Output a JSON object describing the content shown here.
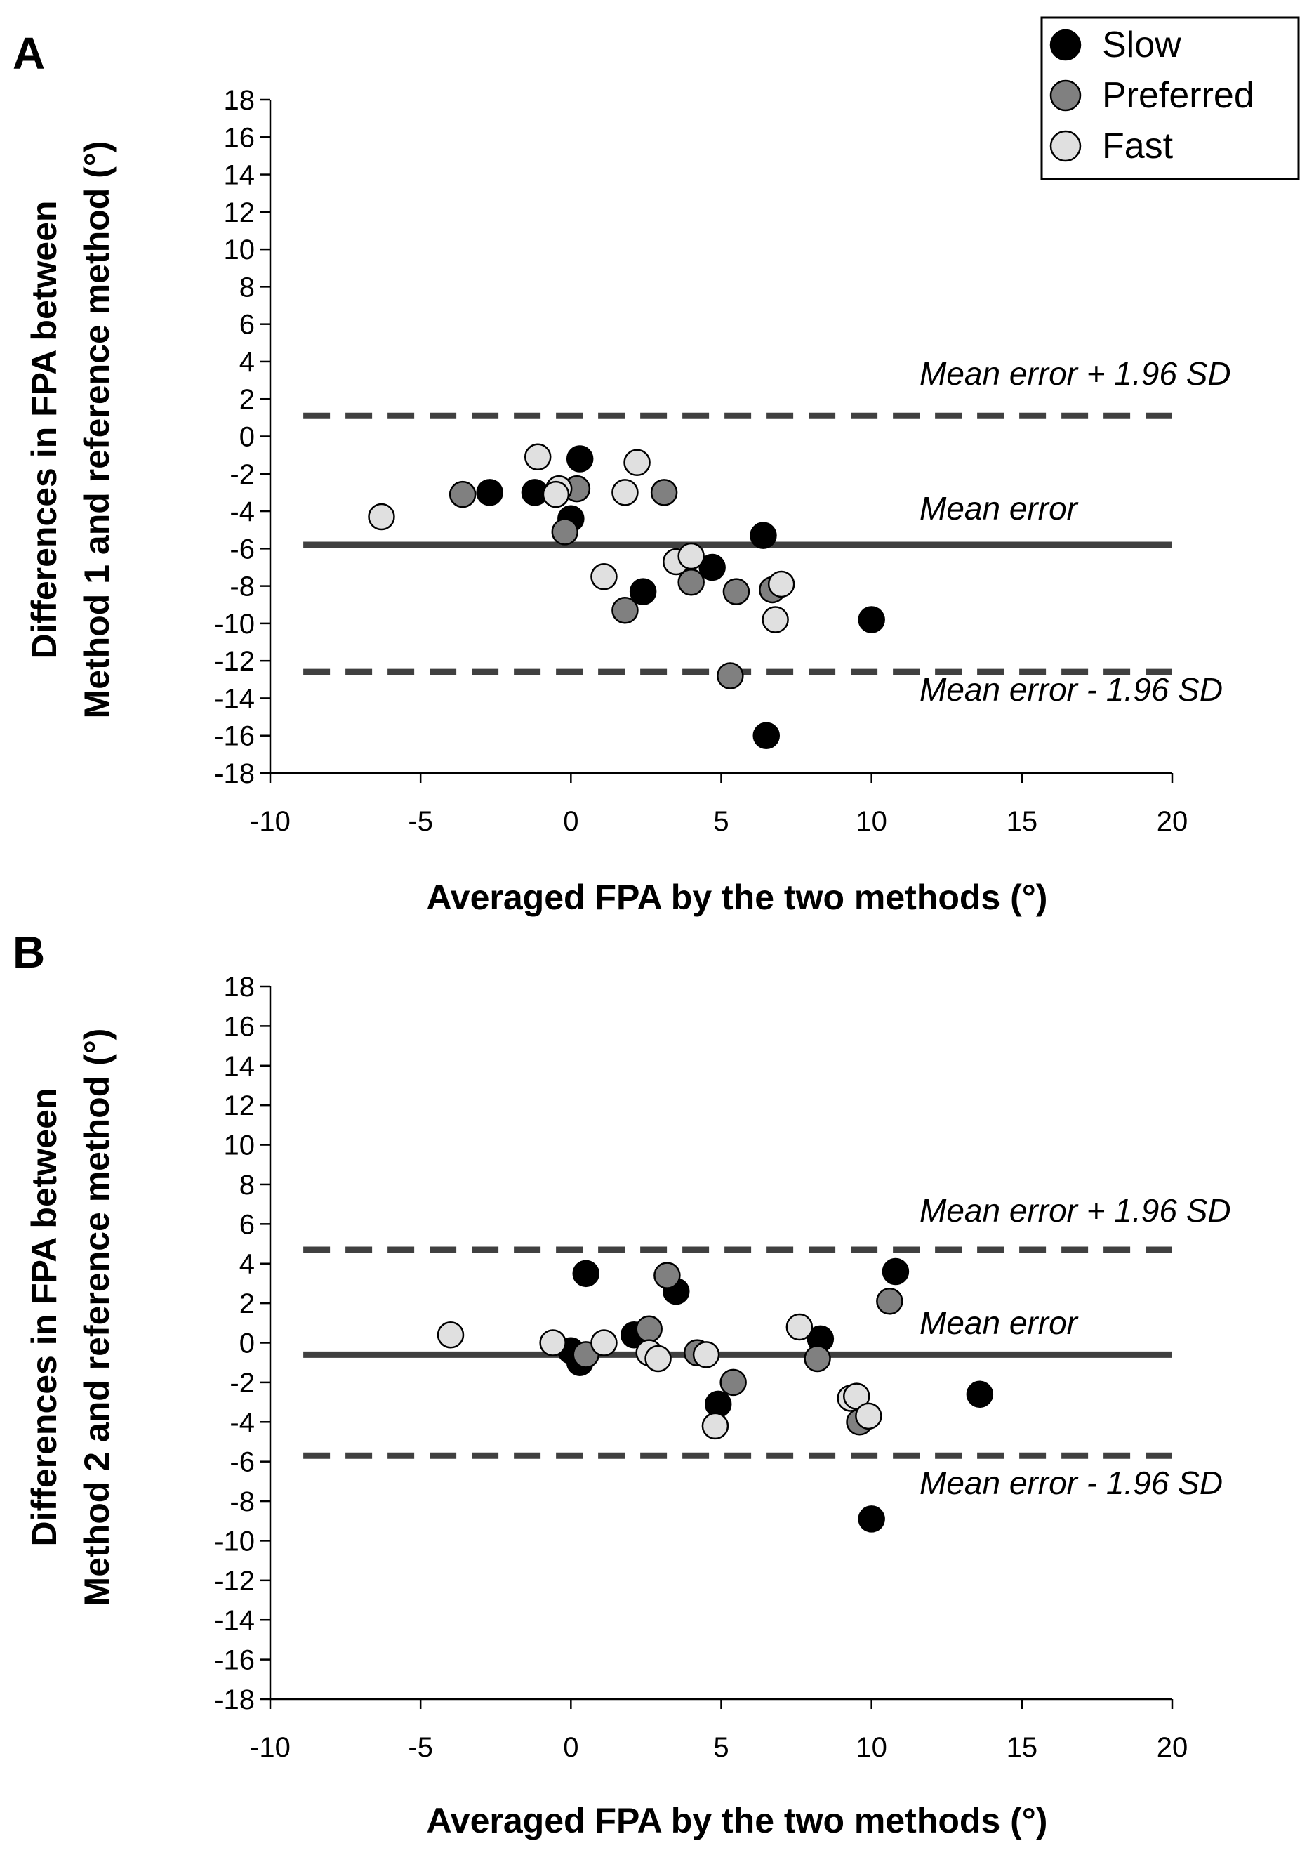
{
  "chart_data": [
    {
      "panel": "A",
      "type": "scatter",
      "xlabel": "Averaged FPA by the two methods (°)",
      "ylabel_lines": [
        "Differences in FPA between",
        "Method 1 and reference method (°)"
      ],
      "xlim": [
        -10,
        20
      ],
      "ylim": [
        -18,
        18
      ],
      "xticks": [
        -10,
        -5,
        0,
        5,
        10,
        15,
        20
      ],
      "yticks": [
        18,
        16,
        14,
        12,
        10,
        8,
        6,
        4,
        2,
        0,
        -2,
        -4,
        -6,
        -8,
        -10,
        -12,
        -14,
        -16,
        -18
      ],
      "lines": {
        "mean": -5.8,
        "upper": 1.1,
        "lower": -12.6,
        "x_start": -8.9
      },
      "annotations": {
        "upper": "Mean error + 1.96 SD",
        "mean": "Mean error",
        "lower": "Mean error - 1.96 SD"
      },
      "series": [
        {
          "name": "Slow",
          "color": "#000000",
          "points": [
            [
              0.3,
              -1.2
            ],
            [
              -2.7,
              -3.0
            ],
            [
              -1.2,
              -3.0
            ],
            [
              0.0,
              -4.4
            ],
            [
              6.4,
              -5.3
            ],
            [
              4.7,
              -7.0
            ],
            [
              2.4,
              -8.3
            ],
            [
              10.0,
              -9.8
            ],
            [
              6.5,
              -16.0
            ]
          ]
        },
        {
          "name": "Preferred",
          "color": "#808080",
          "points": [
            [
              -3.6,
              -3.1
            ],
            [
              0.2,
              -2.8
            ],
            [
              3.1,
              -3.0
            ],
            [
              -0.2,
              -5.1
            ],
            [
              4.0,
              -7.8
            ],
            [
              5.5,
              -8.3
            ],
            [
              6.7,
              -8.2
            ],
            [
              1.8,
              -9.3
            ],
            [
              5.3,
              -12.8
            ]
          ]
        },
        {
          "name": "Fast",
          "color": "#e0e0e0",
          "points": [
            [
              -6.3,
              -4.3
            ],
            [
              -1.1,
              -1.1
            ],
            [
              -0.4,
              -2.8
            ],
            [
              -0.5,
              -3.1
            ],
            [
              2.2,
              -1.4
            ],
            [
              1.8,
              -3.0
            ],
            [
              3.5,
              -6.7
            ],
            [
              4.0,
              -6.4
            ],
            [
              1.1,
              -7.5
            ],
            [
              7.0,
              -7.9
            ],
            [
              6.8,
              -9.8
            ]
          ]
        }
      ]
    },
    {
      "panel": "B",
      "type": "scatter",
      "xlabel": "Averaged FPA by the two methods (°)",
      "ylabel_lines": [
        "Differences in FPA between",
        "Method 2 and reference method (°)"
      ],
      "xlim": [
        -10,
        20
      ],
      "ylim": [
        -18,
        18
      ],
      "xticks": [
        -10,
        -5,
        0,
        5,
        10,
        15,
        20
      ],
      "yticks": [
        18,
        16,
        14,
        12,
        10,
        8,
        6,
        4,
        2,
        0,
        -2,
        -4,
        -6,
        -8,
        -10,
        -12,
        -14,
        -16,
        -18
      ],
      "lines": {
        "mean": -0.6,
        "upper": 4.7,
        "lower": -5.7,
        "x_start": -8.9
      },
      "annotations": {
        "upper": "Mean error + 1.96 SD",
        "mean": "Mean error",
        "lower": "Mean error - 1.96 SD"
      },
      "series": [
        {
          "name": "Slow",
          "color": "#000000",
          "points": [
            [
              0.5,
              3.5
            ],
            [
              3.5,
              2.6
            ],
            [
              2.1,
              0.4
            ],
            [
              0.0,
              -0.4
            ],
            [
              0.3,
              -1.0
            ],
            [
              8.3,
              0.2
            ],
            [
              4.9,
              -3.1
            ],
            [
              10.8,
              3.6
            ],
            [
              13.6,
              -2.6
            ],
            [
              10.0,
              -8.9
            ]
          ]
        },
        {
          "name": "Preferred",
          "color": "#808080",
          "points": [
            [
              3.2,
              3.4
            ],
            [
              2.6,
              0.7
            ],
            [
              0.5,
              -0.6
            ],
            [
              4.2,
              -0.5
            ],
            [
              5.4,
              -2.0
            ],
            [
              8.2,
              -0.8
            ],
            [
              9.6,
              -4.0
            ],
            [
              10.6,
              2.1
            ]
          ]
        },
        {
          "name": "Fast",
          "color": "#e0e0e0",
          "points": [
            [
              -4.0,
              0.4
            ],
            [
              -0.6,
              0.0
            ],
            [
              1.1,
              0.0
            ],
            [
              2.6,
              -0.5
            ],
            [
              2.9,
              -0.8
            ],
            [
              4.5,
              -0.6
            ],
            [
              4.8,
              -4.2
            ],
            [
              7.6,
              0.8
            ],
            [
              9.3,
              -2.8
            ],
            [
              9.5,
              -2.7
            ],
            [
              9.9,
              -3.7
            ]
          ]
        }
      ]
    }
  ],
  "legend": {
    "items": [
      {
        "label": "Slow",
        "color": "#000000"
      },
      {
        "label": "Preferred",
        "color": "#808080"
      },
      {
        "label": "Fast",
        "color": "#e0e0e0"
      }
    ]
  }
}
